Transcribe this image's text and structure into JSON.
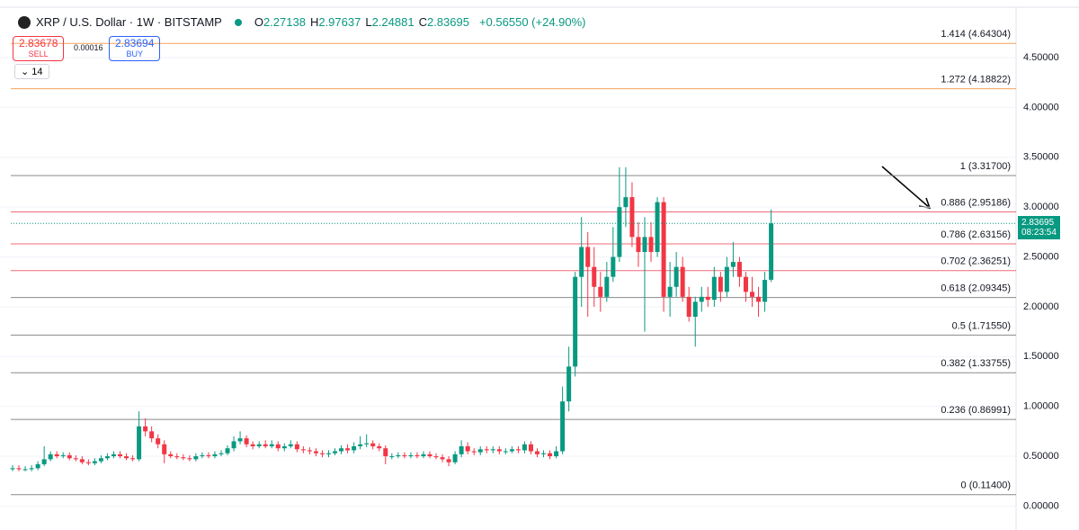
{
  "header": {
    "symbol": "XRP / U.S. Dollar · 1W · BITSTAMP",
    "ohlc": [
      {
        "label": "O",
        "value": "2.27138"
      },
      {
        "label": "H",
        "value": "2.97637"
      },
      {
        "label": "L",
        "value": "2.24881"
      },
      {
        "label": "C",
        "value": "2.83695"
      }
    ],
    "change": "+0.56550 (+24.90%)"
  },
  "trade": {
    "sell_price": "2.83678",
    "sell": "SELL",
    "spread": "0.00016",
    "buy_price": "2.83694",
    "buy": "BUY"
  },
  "indicator": "14",
  "price_label": {
    "price": "2.83695",
    "countdown": "08:23:54"
  },
  "chart_data": {
    "type": "candlestick",
    "up_color": "#089981",
    "down_color": "#f23645",
    "ylim": [
      -0.24,
      4.97
    ],
    "yticks": [
      {
        "value": 0,
        "label": "0.00000"
      },
      {
        "value": 0.5,
        "label": "0.50000"
      },
      {
        "value": 1,
        "label": "1.00000"
      },
      {
        "value": 1.5,
        "label": "1.50000"
      },
      {
        "value": 2,
        "label": "2.00000"
      },
      {
        "value": 2.5,
        "label": "2.50000"
      },
      {
        "value": 3,
        "label": "3.00000"
      },
      {
        "value": 3.5,
        "label": "3.50000"
      },
      {
        "value": 4,
        "label": "4.00000"
      },
      {
        "value": 4.5,
        "label": "4.50000"
      }
    ],
    "grid": true,
    "open": [
      0.37,
      0.38,
      0.37,
      0.37,
      0.38,
      0.42,
      0.47,
      0.52,
      0.5,
      0.51,
      0.48,
      0.47,
      0.44,
      0.43,
      0.45,
      0.48,
      0.5,
      0.52,
      0.5,
      0.48,
      0.47,
      0.8,
      0.75,
      0.68,
      0.62,
      0.52,
      0.5,
      0.49,
      0.48,
      0.47,
      0.5,
      0.51,
      0.5,
      0.52,
      0.53,
      0.58,
      0.65,
      0.68,
      0.62,
      0.6,
      0.62,
      0.6,
      0.62,
      0.58,
      0.6,
      0.62,
      0.57,
      0.56,
      0.55,
      0.53,
      0.52,
      0.53,
      0.55,
      0.58,
      0.56,
      0.6,
      0.62,
      0.63,
      0.6,
      0.58,
      0.5,
      0.5,
      0.51,
      0.5,
      0.51,
      0.5,
      0.52,
      0.5,
      0.49,
      0.47,
      0.44,
      0.52,
      0.6,
      0.55,
      0.54,
      0.57,
      0.56,
      0.57,
      0.55,
      0.55,
      0.57,
      0.56,
      0.62,
      0.55,
      0.52,
      0.53,
      0.5,
      0.55,
      1.05,
      1.4,
      2.3,
      2.6,
      2.4,
      2.2,
      2.1,
      2.3,
      2.5,
      3.0,
      3.1,
      2.7,
      2.55,
      2.7,
      2.55,
      3.05,
      2.1,
      2.2,
      2.4,
      2.1,
      1.9,
      2.05,
      2.1,
      2.07,
      2.3,
      2.15,
      2.4,
      2.45,
      2.3,
      2.15,
      2.1,
      2.05,
      2.27138
    ],
    "high": [
      0.41,
      0.41,
      0.4,
      0.41,
      0.45,
      0.6,
      0.55,
      0.55,
      0.54,
      0.54,
      0.51,
      0.5,
      0.47,
      0.48,
      0.51,
      0.53,
      0.55,
      0.55,
      0.53,
      0.51,
      0.95,
      0.88,
      0.8,
      0.72,
      0.66,
      0.55,
      0.53,
      0.52,
      0.51,
      0.53,
      0.54,
      0.54,
      0.55,
      0.56,
      0.61,
      0.7,
      0.75,
      0.71,
      0.65,
      0.65,
      0.66,
      0.66,
      0.65,
      0.63,
      0.66,
      0.65,
      0.6,
      0.59,
      0.58,
      0.56,
      0.56,
      0.58,
      0.61,
      0.62,
      0.64,
      0.7,
      0.72,
      0.66,
      0.63,
      0.61,
      0.53,
      0.54,
      0.54,
      0.54,
      0.54,
      0.55,
      0.55,
      0.53,
      0.52,
      0.5,
      0.55,
      0.66,
      0.64,
      0.58,
      0.6,
      0.6,
      0.6,
      0.6,
      0.58,
      0.6,
      0.6,
      0.65,
      0.65,
      0.58,
      0.56,
      0.56,
      0.6,
      1.2,
      1.6,
      2.35,
      2.9,
      2.75,
      2.6,
      2.35,
      2.45,
      2.8,
      3.4,
      3.4,
      3.25,
      2.85,
      2.9,
      2.85,
      3.1,
      3.1,
      2.45,
      2.55,
      2.5,
      2.2,
      2.1,
      2.2,
      2.2,
      2.4,
      2.35,
      2.5,
      2.65,
      2.5,
      2.35,
      2.3,
      2.2,
      2.35,
      2.97637
    ],
    "low": [
      0.35,
      0.35,
      0.35,
      0.35,
      0.36,
      0.4,
      0.45,
      0.48,
      0.48,
      0.46,
      0.45,
      0.42,
      0.41,
      0.41,
      0.43,
      0.46,
      0.48,
      0.48,
      0.46,
      0.45,
      0.45,
      0.7,
      0.64,
      0.58,
      0.43,
      0.48,
      0.47,
      0.46,
      0.45,
      0.45,
      0.48,
      0.48,
      0.48,
      0.5,
      0.51,
      0.55,
      0.62,
      0.59,
      0.57,
      0.58,
      0.58,
      0.58,
      0.55,
      0.55,
      0.58,
      0.54,
      0.53,
      0.52,
      0.5,
      0.49,
      0.49,
      0.51,
      0.52,
      0.53,
      0.53,
      0.57,
      0.59,
      0.57,
      0.55,
      0.42,
      0.47,
      0.48,
      0.48,
      0.48,
      0.48,
      0.48,
      0.48,
      0.47,
      0.44,
      0.4,
      0.42,
      0.49,
      0.52,
      0.51,
      0.51,
      0.53,
      0.53,
      0.52,
      0.52,
      0.53,
      0.53,
      0.53,
      0.52,
      0.49,
      0.49,
      0.47,
      0.48,
      0.52,
      0.95,
      1.3,
      2.0,
      1.9,
      2.0,
      1.95,
      2.05,
      2.25,
      2.45,
      2.8,
      2.6,
      2.4,
      1.75,
      2.45,
      2.5,
      1.95,
      1.9,
      2.1,
      2.05,
      1.85,
      1.6,
      1.95,
      2.0,
      2.0,
      2.05,
      2.1,
      2.3,
      2.2,
      2.05,
      2.0,
      1.9,
      1.95,
      2.24881
    ],
    "close": [
      0.38,
      0.37,
      0.37,
      0.38,
      0.42,
      0.47,
      0.52,
      0.5,
      0.51,
      0.48,
      0.47,
      0.44,
      0.43,
      0.45,
      0.48,
      0.5,
      0.52,
      0.5,
      0.48,
      0.47,
      0.8,
      0.75,
      0.68,
      0.62,
      0.52,
      0.5,
      0.49,
      0.48,
      0.47,
      0.5,
      0.51,
      0.5,
      0.52,
      0.53,
      0.58,
      0.65,
      0.68,
      0.62,
      0.6,
      0.62,
      0.6,
      0.62,
      0.58,
      0.6,
      0.62,
      0.57,
      0.56,
      0.55,
      0.53,
      0.52,
      0.53,
      0.55,
      0.58,
      0.56,
      0.6,
      0.62,
      0.63,
      0.6,
      0.58,
      0.5,
      0.5,
      0.51,
      0.5,
      0.51,
      0.5,
      0.52,
      0.5,
      0.49,
      0.47,
      0.44,
      0.52,
      0.6,
      0.55,
      0.54,
      0.57,
      0.56,
      0.57,
      0.55,
      0.55,
      0.57,
      0.56,
      0.62,
      0.55,
      0.52,
      0.53,
      0.5,
      0.55,
      1.05,
      1.4,
      2.3,
      2.6,
      2.4,
      2.2,
      2.1,
      2.3,
      2.5,
      3.0,
      3.1,
      2.7,
      2.55,
      2.7,
      2.55,
      3.05,
      2.1,
      2.2,
      2.4,
      2.1,
      1.9,
      2.05,
      2.1,
      2.07,
      2.3,
      2.15,
      2.4,
      2.45,
      2.3,
      2.15,
      2.1,
      2.05,
      2.27,
      2.83695
    ],
    "levels": [
      {
        "label": "1.414 (4.64304)",
        "value": 4.64304,
        "color": "#f7a35c"
      },
      {
        "label": "1.272 (4.18822)",
        "value": 4.18822,
        "color": "#f7a35c"
      },
      {
        "label": "1 (3.31700)",
        "value": 3.317,
        "color": "#8a8a8a"
      },
      {
        "label": "0.886 (2.95186)",
        "value": 2.95186,
        "color": "#f06a7a"
      },
      {
        "label": "0.786 (2.63156)",
        "value": 2.63156,
        "color": "#f06a7a"
      },
      {
        "label": "0.702 (2.36251)",
        "value": 2.36251,
        "color": "#f06a7a"
      },
      {
        "label": "0.618 (2.09345)",
        "value": 2.09345,
        "color": "#8a8a8a"
      },
      {
        "label": "0.5 (1.71550)",
        "value": 1.7155,
        "color": "#8a8a8a"
      },
      {
        "label": "0.382 (1.33755)",
        "value": 1.33755,
        "color": "#8a8a8a"
      },
      {
        "label": "0.236 (0.86991)",
        "value": 0.86991,
        "color": "#8a8a8a"
      },
      {
        "label": "0 (0.11400)",
        "value": 0.114,
        "color": "#8a8a8a"
      }
    ]
  }
}
